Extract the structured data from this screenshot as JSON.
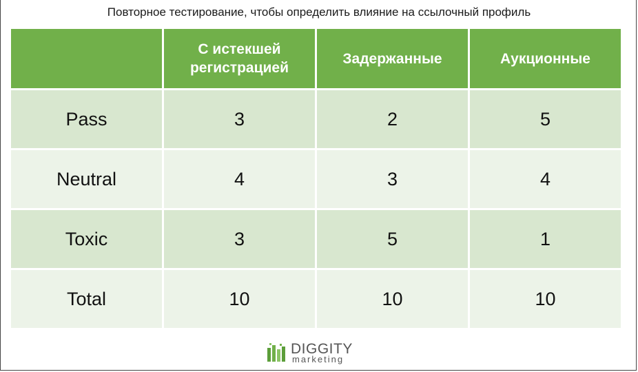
{
  "title": "Повторное тестирование, чтобы определить влияние на ссылочный профиль",
  "table": {
    "headers": [
      "",
      "С истекшей регистрацией",
      "Задержанные",
      "Аукционные"
    ],
    "rows": [
      {
        "label": "Pass",
        "values": [
          "3",
          "2",
          "5"
        ]
      },
      {
        "label": "Neutral",
        "values": [
          "4",
          "3",
          "4"
        ]
      },
      {
        "label": "Toxic",
        "values": [
          "3",
          "5",
          "1"
        ]
      },
      {
        "label": "Total",
        "values": [
          "10",
          "10",
          "10"
        ]
      }
    ]
  },
  "logo": {
    "word": "DIGGITY",
    "sub": "marketing",
    "icon": "diggity-logo-icon"
  },
  "colors": {
    "header": "#71b04a",
    "row_dark": "#d8e7cf",
    "row_light": "#ecf3e8"
  }
}
